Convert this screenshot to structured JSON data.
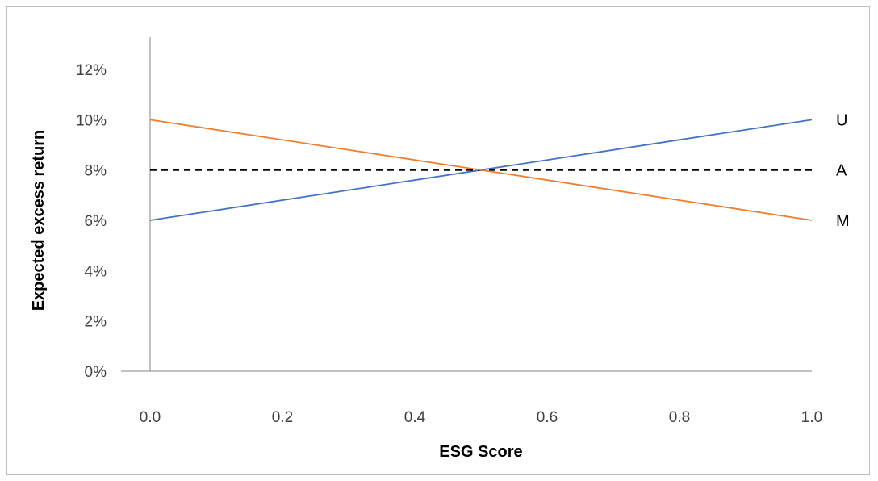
{
  "chart_data": {
    "type": "line",
    "title": "",
    "xlabel": "ESG Score",
    "ylabel": "Expected excess return",
    "xlim": [
      0,
      1
    ],
    "ylim": [
      0,
      12
    ],
    "x_ticks": [
      "0.0",
      "0.2",
      "0.4",
      "0.6",
      "0.8",
      "1.0"
    ],
    "y_ticks": [
      "0%",
      "2%",
      "4%",
      "6%",
      "8%",
      "10%",
      "12%"
    ],
    "grid": false,
    "legend": "none",
    "series": [
      {
        "name": "U",
        "x": [
          0,
          1
        ],
        "values": [
          6,
          10
        ],
        "color": "#4472c4",
        "style": "solid"
      },
      {
        "name": "A",
        "x": [
          0,
          1
        ],
        "values": [
          8,
          8
        ],
        "color": "#000000",
        "style": "dashed"
      },
      {
        "name": "M",
        "x": [
          0,
          1
        ],
        "values": [
          10,
          6
        ],
        "color": "#ed7d31",
        "style": "solid"
      }
    ]
  }
}
